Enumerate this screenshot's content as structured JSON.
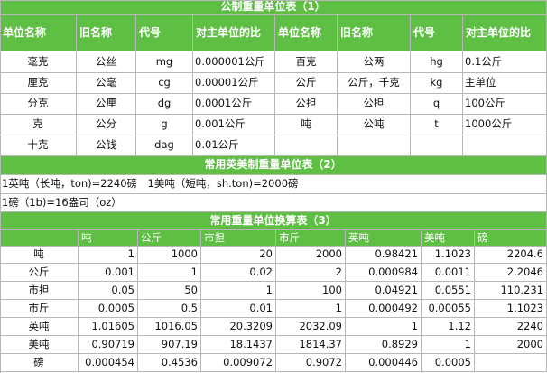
{
  "metric_table": {
    "title": "公制重量单位表（1）",
    "headers": [
      "单位名称",
      "旧名称",
      "代号",
      "对主单位的比",
      "单位名称",
      "旧名称",
      "代号",
      "对主单位的比"
    ],
    "rows": [
      [
        "毫克",
        "公丝",
        "mg",
        "0.000001公斤",
        "百克",
        "公两",
        "hg",
        "0.1公斤"
      ],
      [
        "厘克",
        "公毫",
        "cg",
        "0.00001公斤",
        "公斤",
        "公斤，千克",
        "kg",
        "主单位"
      ],
      [
        "分克",
        "公厘",
        "dg",
        "0.0001公斤",
        "公担",
        "公担",
        "q",
        "100公斤"
      ],
      [
        "克",
        "公分",
        "g",
        "0.001公斤",
        "吨",
        "公吨",
        "t",
        "1000公斤"
      ],
      [
        "十克",
        "公钱",
        "dag",
        "0.01公斤",
        "",
        "",
        "",
        ""
      ]
    ]
  },
  "imperial_table": {
    "title": "常用英美制重量单位表（2）",
    "line1": "1英吨（长吨，ton)=2240磅　1美吨（短吨，sh.ton)=2000磅",
    "line2": "1磅（1b)=16盎司（oz）"
  },
  "conversion_table": {
    "title": "常用重量单位换算表（3）",
    "headers": [
      "",
      "吨",
      "公斤",
      "市担",
      "市斤",
      "英吨",
      "美吨",
      "磅"
    ],
    "rows": [
      [
        "吨",
        "1",
        "1000",
        "20",
        "2000",
        "0.98421",
        "1.1023",
        "2204.6"
      ],
      [
        "公斤",
        "0.001",
        "1",
        "0.02",
        "2",
        "0.000984",
        "0.0011",
        "2.2046"
      ],
      [
        "市担",
        "0.05",
        "50",
        "1",
        "100",
        "0.04921",
        "0.0551",
        "110.231"
      ],
      [
        "市斤",
        "0.0005",
        "0.5",
        "0.01",
        "1",
        "0.000492",
        "0.00055",
        "1.1023"
      ],
      [
        "英吨",
        "1.01605",
        "1016.05",
        "20.3209",
        "2032.09",
        "1",
        "1.12",
        "2240"
      ],
      [
        "美吨",
        "0.90719",
        "907.19",
        "18.1437",
        "1814.37",
        "0.8929",
        "1",
        "2000"
      ],
      [
        "磅",
        "0.000454",
        "0.4536",
        "0.009072",
        "0.9072",
        "0.000446",
        "0.0005",
        ""
      ]
    ]
  },
  "colors": {
    "header_green": "#5fbf45",
    "grid": "#b7b7b7"
  }
}
